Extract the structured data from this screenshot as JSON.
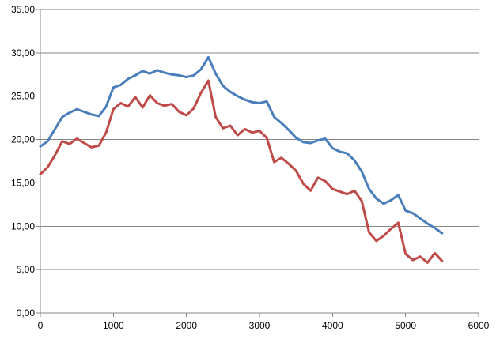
{
  "chart_data": {
    "type": "line",
    "title": "",
    "xlabel": "",
    "ylabel": "",
    "xlim": [
      0,
      6000
    ],
    "ylim": [
      0,
      35
    ],
    "x_ticks": [
      0,
      1000,
      2000,
      3000,
      4000,
      5000,
      6000
    ],
    "y_ticks": [
      0,
      5,
      10,
      15,
      20,
      25,
      30,
      35
    ],
    "x_tick_labels": [
      "0",
      "1000",
      "2000",
      "3000",
      "4000",
      "5000",
      "6000"
    ],
    "y_tick_labels": [
      "0,00",
      "5,00",
      "10,00",
      "15,00",
      "20,00",
      "25,00",
      "30,00",
      "35,00"
    ],
    "grid": {
      "horizontal": true,
      "vertical": false
    },
    "legend": "none",
    "series": [
      {
        "color": "#4a7ebb",
        "x": [
          0,
          100,
          200,
          300,
          400,
          500,
          600,
          700,
          800,
          900,
          1000,
          1100,
          1200,
          1300,
          1400,
          1500,
          1600,
          1700,
          1800,
          1900,
          2000,
          2100,
          2200,
          2300,
          2400,
          2500,
          2600,
          2700,
          2800,
          2900,
          3000,
          3100,
          3200,
          3300,
          3400,
          3500,
          3600,
          3700,
          3800,
          3900,
          4000,
          4100,
          4200,
          4300,
          4400,
          4500,
          4600,
          4700,
          4800,
          4900,
          5000,
          5100,
          5200,
          5300,
          5400,
          5500
        ],
        "values": [
          19.2,
          19.8,
          21.2,
          22.6,
          23.1,
          23.5,
          23.2,
          22.9,
          22.7,
          23.8,
          26.0,
          26.3,
          27.0,
          27.4,
          27.9,
          27.6,
          28.0,
          27.7,
          27.5,
          27.4,
          27.2,
          27.4,
          28.1,
          29.5,
          27.6,
          26.2,
          25.5,
          25.0,
          24.6,
          24.3,
          24.2,
          24.4,
          22.6,
          21.9,
          21.1,
          20.2,
          19.7,
          19.6,
          19.9,
          20.1,
          19.0,
          18.6,
          18.4,
          17.6,
          16.3,
          14.3,
          13.2,
          12.6,
          13.0,
          13.6,
          11.8,
          11.5,
          10.9,
          10.3,
          9.8,
          9.2
        ]
      },
      {
        "color": "#be4b48",
        "x": [
          0,
          100,
          200,
          300,
          400,
          500,
          600,
          700,
          800,
          900,
          1000,
          1100,
          1200,
          1300,
          1400,
          1500,
          1600,
          1700,
          1800,
          1900,
          2000,
          2100,
          2200,
          2300,
          2400,
          2500,
          2600,
          2700,
          2800,
          2900,
          3000,
          3100,
          3200,
          3300,
          3400,
          3500,
          3600,
          3700,
          3800,
          3900,
          4000,
          4100,
          4200,
          4300,
          4400,
          4500,
          4600,
          4700,
          4800,
          4900,
          5000,
          5100,
          5200,
          5300,
          5400,
          5500
        ],
        "values": [
          16.0,
          16.8,
          18.2,
          19.8,
          19.5,
          20.1,
          19.6,
          19.1,
          19.3,
          20.8,
          23.5,
          24.2,
          23.8,
          24.9,
          23.7,
          25.1,
          24.2,
          23.9,
          24.1,
          23.2,
          22.8,
          23.6,
          25.4,
          26.8,
          22.6,
          21.3,
          21.6,
          20.5,
          21.2,
          20.8,
          21.0,
          20.2,
          17.4,
          17.9,
          17.2,
          16.4,
          14.9,
          14.1,
          15.6,
          15.2,
          14.3,
          14.0,
          13.7,
          14.1,
          12.9,
          9.3,
          8.3,
          8.9,
          9.7,
          10.4,
          6.8,
          6.1,
          6.5,
          5.8,
          6.9,
          6.0
        ]
      }
    ]
  }
}
